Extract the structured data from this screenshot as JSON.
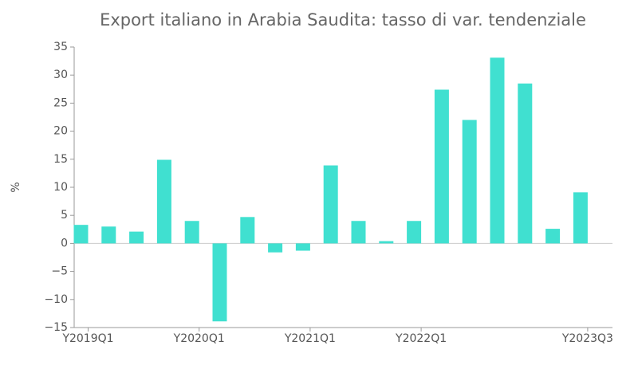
{
  "chart_data": {
    "type": "bar",
    "title": "Export italiano in Arabia Saudita: tasso di var. tendenziale",
    "y_label": "%",
    "categories": [
      "Y2019Q1",
      null,
      null,
      null,
      "Y2020Q1",
      null,
      null,
      null,
      "Y2021Q1",
      null,
      null,
      null,
      "Y2022Q1",
      null,
      null,
      null,
      null,
      null,
      "Y2023Q3"
    ],
    "values": [
      3.3,
      3.0,
      2.1,
      14.9,
      4.0,
      -13.9,
      4.7,
      -1.6,
      -1.3,
      13.9,
      4.0,
      0.4,
      4.0,
      27.4,
      22.0,
      33.1,
      28.5,
      2.6,
      9.1
    ],
    "color": "#40e0d0",
    "ylim": [
      -15,
      35
    ],
    "yticks": [
      {
        "value": -15,
        "label": "−15"
      },
      {
        "value": -10,
        "label": "−10"
      },
      {
        "value": -5,
        "label": "−5"
      },
      0,
      5,
      10,
      15,
      20,
      25,
      30,
      35
    ],
    "grid": false
  }
}
